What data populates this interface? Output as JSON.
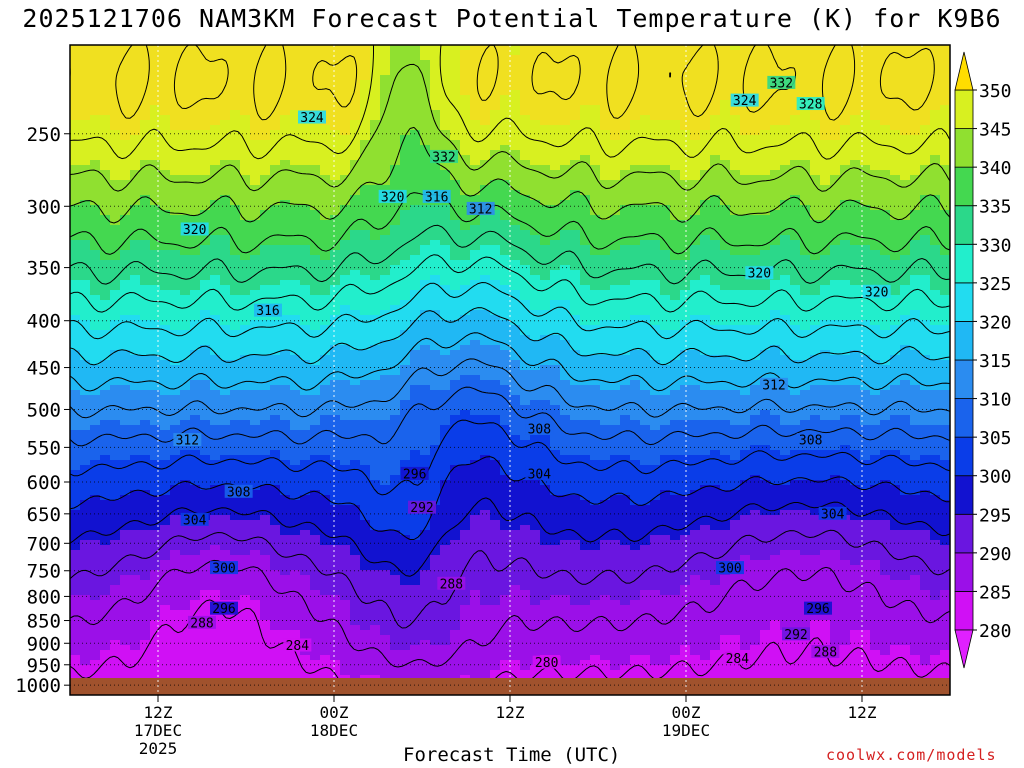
{
  "title": "2025121706 NAM3KM Forecast Potential Temperature (K) for K9B6",
  "credit": "coolwx.com/models",
  "chart_data": {
    "type": "heatmap",
    "title": "2025121706 NAM3KM Forecast Potential Temperature (K) for K9B6",
    "xlabel": "Forecast Time (UTC)",
    "ylabel": "",
    "y_scale": "log",
    "y_reversed": true,
    "y_ticks": [
      250,
      300,
      350,
      400,
      450,
      500,
      550,
      600,
      650,
      700,
      750,
      800,
      850,
      900,
      950,
      1000
    ],
    "y_range": [
      200,
      1025
    ],
    "x_ticks": [
      {
        "hour": 6,
        "line1": "12Z",
        "line2": "17DEC",
        "line3": "2025"
      },
      {
        "hour": 18,
        "line1": "00Z",
        "line2": "18DEC",
        "line3": ""
      },
      {
        "hour": 30,
        "line1": "12Z",
        "line2": "",
        "line3": ""
      },
      {
        "hour": 42,
        "line1": "00Z",
        "line2": "19DEC",
        "line3": ""
      },
      {
        "hour": 54,
        "line1": "12Z",
        "line2": "",
        "line3": ""
      }
    ],
    "x_range": [
      0,
      60
    ],
    "grid": true,
    "colorbar": {
      "levels": [
        280,
        285,
        290,
        295,
        300,
        305,
        310,
        315,
        320,
        325,
        330,
        335,
        340,
        345,
        350
      ],
      "colors": [
        "#d010f5",
        "#9b10e8",
        "#6a16e0",
        "#1212d0",
        "#0a3de8",
        "#1a63ec",
        "#2b8cf0",
        "#20b8f4",
        "#22dcf0",
        "#22eecc",
        "#2bd88a",
        "#44d850",
        "#90e030",
        "#d8f020",
        "#f0e020"
      ],
      "below_color": "#e020ff",
      "above_color": "#ffdd00"
    },
    "contour_interval": 4,
    "contour_labels": [
      {
        "value": 324,
        "hour": 16.5,
        "p": 240
      },
      {
        "value": 332,
        "hour": 25.5,
        "p": 265
      },
      {
        "value": 332,
        "hour": 48.5,
        "p": 220
      },
      {
        "value": 324,
        "hour": 46,
        "p": 230
      },
      {
        "value": 328,
        "hour": 50.5,
        "p": 232
      },
      {
        "value": 320,
        "hour": 22,
        "p": 293
      },
      {
        "value": 316,
        "hour": 25,
        "p": 293
      },
      {
        "value": 312,
        "hour": 28,
        "p": 302
      },
      {
        "value": 320,
        "hour": 8.5,
        "p": 318
      },
      {
        "value": 320,
        "hour": 47,
        "p": 355
      },
      {
        "value": 320,
        "hour": 55,
        "p": 372
      },
      {
        "value": 316,
        "hour": 13.5,
        "p": 390
      },
      {
        "value": 312,
        "hour": 48,
        "p": 470
      },
      {
        "value": 308,
        "hour": 32,
        "p": 525
      },
      {
        "value": 312,
        "hour": 8,
        "p": 540
      },
      {
        "value": 308,
        "hour": 50.5,
        "p": 540
      },
      {
        "value": 304,
        "hour": 32,
        "p": 588
      },
      {
        "value": 308,
        "hour": 11.5,
        "p": 615
      },
      {
        "value": 296,
        "hour": 23.5,
        "p": 588
      },
      {
        "value": 292,
        "hour": 24,
        "p": 640
      },
      {
        "value": 304,
        "hour": 8.5,
        "p": 660
      },
      {
        "value": 304,
        "hour": 52,
        "p": 650
      },
      {
        "value": 300,
        "hour": 10.5,
        "p": 745
      },
      {
        "value": 300,
        "hour": 45,
        "p": 745
      },
      {
        "value": 288,
        "hour": 26,
        "p": 775
      },
      {
        "value": 296,
        "hour": 10.5,
        "p": 825
      },
      {
        "value": 296,
        "hour": 51,
        "p": 825
      },
      {
        "value": 288,
        "hour": 9,
        "p": 855
      },
      {
        "value": 292,
        "hour": 49.5,
        "p": 880
      },
      {
        "value": 284,
        "hour": 15.5,
        "p": 905
      },
      {
        "value": 288,
        "hour": 51.5,
        "p": 920
      },
      {
        "value": 280,
        "hour": 32.5,
        "p": 945
      },
      {
        "value": 284,
        "hour": 45.5,
        "p": 935
      }
    ],
    "warm_ridge": {
      "hour": 27,
      "p": 340
    },
    "cold_trough": {
      "hour": 23,
      "p": 275
    }
  }
}
